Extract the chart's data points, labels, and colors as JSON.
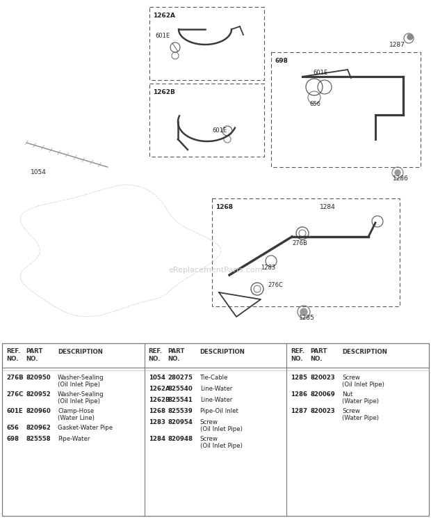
{
  "bg_color": "#ffffff",
  "watermark": "eReplacementParts.com",
  "parts_table": {
    "col1": [
      {
        "ref": "276B",
        "part": "820950",
        "desc1": "Washer-Sealing",
        "desc2": "(Oil Inlet Pipe)"
      },
      {
        "ref": "276C",
        "part": "820952",
        "desc1": "Washer-Sealing",
        "desc2": "(Oil Inlet Pipe)"
      },
      {
        "ref": "601E",
        "part": "820960",
        "desc1": "Clamp-Hose",
        "desc2": "(Water Line)"
      },
      {
        "ref": "656",
        "part": "820962",
        "desc1": "Gasket-Water Pipe",
        "desc2": ""
      },
      {
        "ref": "698",
        "part": "825558",
        "desc1": "Pipe-Water",
        "desc2": ""
      }
    ],
    "col2": [
      {
        "ref": "1054",
        "part": "280275",
        "desc1": "Tie-Cable",
        "desc2": ""
      },
      {
        "ref": "1262A",
        "part": "825540",
        "desc1": "Line-Water",
        "desc2": ""
      },
      {
        "ref": "1262B",
        "part": "825541",
        "desc1": "Line-Water",
        "desc2": ""
      },
      {
        "ref": "1268",
        "part": "825539",
        "desc1": "Pipe-Oil Inlet",
        "desc2": ""
      },
      {
        "ref": "1283",
        "part": "820954",
        "desc1": "Screw",
        "desc2": "(Oil Inlet Pipe)"
      },
      {
        "ref": "1284",
        "part": "820948",
        "desc1": "Screw",
        "desc2": "(Oil Inlet Pipe)"
      }
    ],
    "col3": [
      {
        "ref": "1285",
        "part": "820023",
        "desc1": "Screw",
        "desc2": "(Oil Inlet Pipe)"
      },
      {
        "ref": "1286",
        "part": "820069",
        "desc1": "Nut",
        "desc2": "(Water Pipe)"
      },
      {
        "ref": "1287",
        "part": "820023",
        "desc1": "Screw",
        "desc2": "(Water Pipe)"
      }
    ]
  }
}
